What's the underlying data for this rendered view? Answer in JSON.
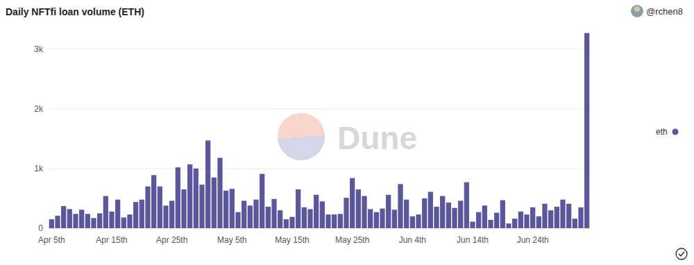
{
  "chart_data": {
    "type": "bar",
    "title": "Daily NFTfi loan volume (ETH)",
    "annotations": [
      "@rchen8",
      "Dune"
    ],
    "categories": [
      "Apr 5th",
      null,
      null,
      null,
      null,
      null,
      null,
      null,
      null,
      null,
      "Apr 15th",
      null,
      null,
      null,
      null,
      null,
      null,
      null,
      null,
      null,
      "Apr 25th",
      null,
      null,
      null,
      null,
      null,
      null,
      null,
      null,
      null,
      "May 5th",
      null,
      null,
      null,
      null,
      null,
      null,
      null,
      null,
      null,
      "May 15th",
      null,
      null,
      null,
      null,
      null,
      null,
      null,
      null,
      null,
      "May 25th",
      null,
      null,
      null,
      null,
      null,
      null,
      null,
      null,
      null,
      "Jun 4th",
      null,
      null,
      null,
      null,
      null,
      null,
      null,
      null,
      null,
      "Jun 14th",
      null,
      null,
      null,
      null,
      null,
      null,
      null,
      null,
      null,
      "Jun 24th",
      null,
      null,
      null,
      null,
      null,
      null,
      null,
      null,
      null
    ],
    "series": [
      {
        "name": "eth",
        "color": "#5a579c",
        "values": [
          150,
          210,
          370,
          320,
          240,
          310,
          240,
          170,
          250,
          540,
          280,
          480,
          180,
          230,
          440,
          480,
          700,
          890,
          700,
          380,
          460,
          1020,
          650,
          1070,
          1000,
          730,
          1470,
          850,
          1180,
          630,
          660,
          270,
          460,
          380,
          480,
          910,
          360,
          490,
          300,
          150,
          190,
          650,
          350,
          320,
          560,
          450,
          230,
          230,
          240,
          510,
          840,
          650,
          540,
          320,
          270,
          330,
          560,
          310,
          740,
          480,
          200,
          230,
          500,
          610,
          360,
          540,
          430,
          340,
          460,
          770,
          110,
          270,
          380,
          140,
          260,
          470,
          80,
          160,
          280,
          230,
          350,
          200,
          410,
          300,
          360,
          480,
          410,
          160,
          350,
          3270
        ]
      }
    ],
    "ylim": [
      0,
      3300
    ],
    "yticks": [
      0,
      {
        "value": 1000,
        "label": "1k"
      },
      {
        "value": 2000,
        "label": "2k"
      },
      {
        "value": 3000,
        "label": "3k"
      }
    ],
    "grid": true,
    "legend": "right"
  }
}
